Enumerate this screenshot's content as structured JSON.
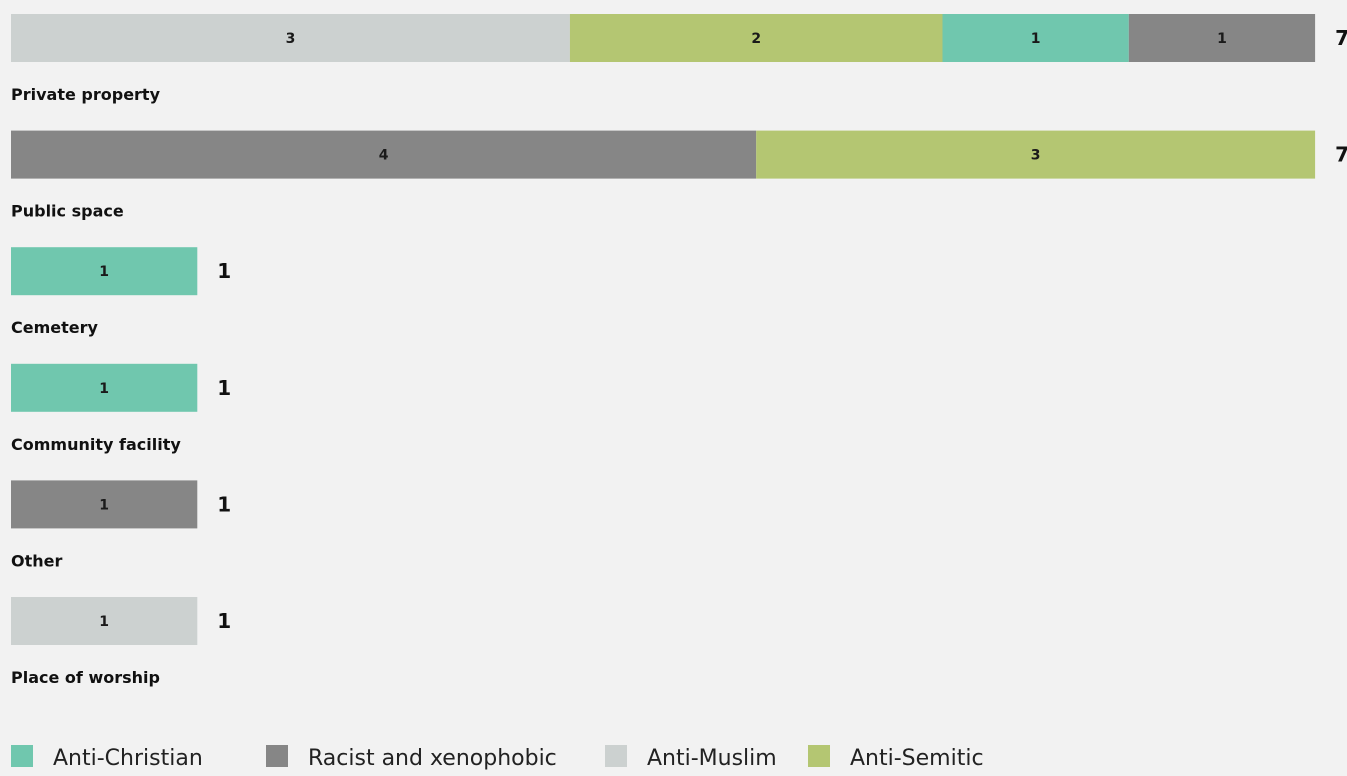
{
  "chart_data": {
    "type": "bar",
    "orientation": "horizontal",
    "stacked": true,
    "title": "",
    "xlabel": "",
    "ylabel": "",
    "grid": false,
    "legend_position": "bottom",
    "categories": [
      "Private property",
      "Public space",
      "Cemetery",
      "Community facility",
      "Other",
      "Place of worship"
    ],
    "totals": [
      7,
      7,
      1,
      1,
      1,
      1
    ],
    "segment_order": [
      [
        "Anti-Muslim",
        "Anti-Semitic",
        "Anti-Christian",
        "Racist and xenophobic"
      ],
      [
        "Racist and xenophobic",
        "Anti-Semitic"
      ],
      [
        "Anti-Christian"
      ],
      [
        "Anti-Christian"
      ],
      [
        "Racist and xenophobic"
      ],
      [
        "Anti-Muslim"
      ]
    ],
    "series": [
      {
        "name": "Anti-Christian",
        "color": "#70c7ae",
        "values": [
          1,
          0,
          1,
          1,
          0,
          0
        ]
      },
      {
        "name": "Racist and xenophobic",
        "color": "#868686",
        "values": [
          1,
          4,
          0,
          0,
          1,
          0
        ]
      },
      {
        "name": "Anti-Muslim",
        "color": "#ccd1d0",
        "values": [
          3,
          0,
          0,
          0,
          0,
          1
        ]
      },
      {
        "name": "Anti-Semitic",
        "color": "#b4c672",
        "values": [
          2,
          3,
          0,
          0,
          0,
          0
        ]
      }
    ],
    "xlim": [
      0,
      7
    ]
  }
}
